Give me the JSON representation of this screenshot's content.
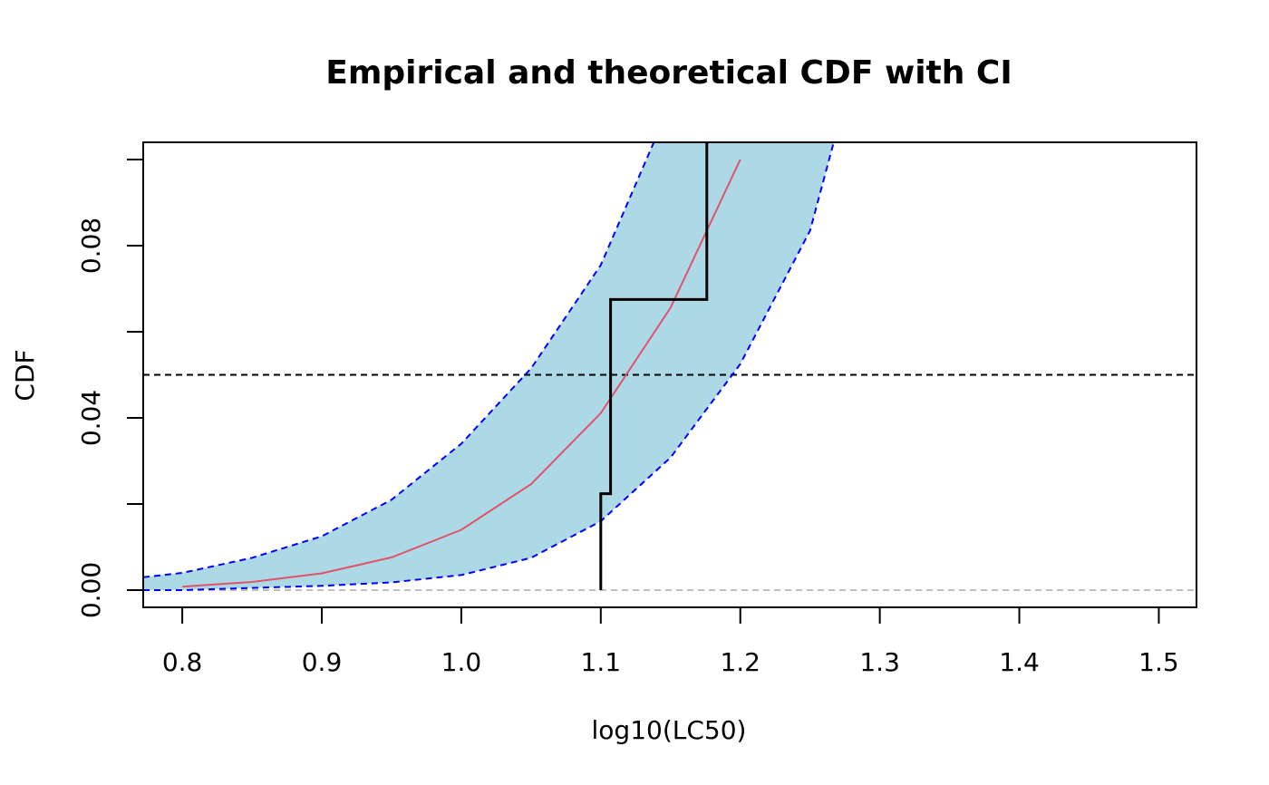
{
  "chart_data": {
    "type": "line",
    "title": "Empirical and theoretical CDF with CI",
    "xlabel": "log10(LC50)",
    "ylabel": "CDF",
    "xlim": [
      0.772,
      1.527
    ],
    "ylim": [
      -0.004,
      0.104
    ],
    "x_ticks": [
      0.8,
      0.9,
      1.0,
      1.1,
      1.2,
      1.3,
      1.4,
      1.5
    ],
    "x_tick_labels": [
      "0.8",
      "0.9",
      "1.0",
      "1.1",
      "1.2",
      "1.3",
      "1.4",
      "1.5"
    ],
    "y_ticks": [
      0.0,
      0.02,
      0.04,
      0.06,
      0.08,
      0.1
    ],
    "y_tick_labels": [
      "0.00",
      "",
      "0.04",
      "",
      "0.08",
      ""
    ],
    "reference_lines": [
      {
        "y": 0.05,
        "color": "#000000",
        "style": "dashed"
      },
      {
        "y": 0.0,
        "color": "#bebebe",
        "style": "dashed"
      }
    ],
    "ci_band": {
      "fill": "#add8e6",
      "line_color": "#0000ff",
      "style": "dashed",
      "upper": {
        "x": [
          0.772,
          0.8,
          0.85,
          0.9,
          0.95,
          1.0,
          1.05,
          1.1,
          1.138
        ],
        "y": [
          0.003,
          0.004,
          0.0075,
          0.0125,
          0.021,
          0.034,
          0.0515,
          0.0755,
          0.104
        ]
      },
      "lower": {
        "x": [
          0.772,
          0.8,
          0.85,
          0.9,
          0.95,
          1.0,
          1.05,
          1.1,
          1.15,
          1.2,
          1.25,
          1.267
        ],
        "y": [
          0.0,
          0.0,
          0.0005,
          0.001,
          0.0018,
          0.0035,
          0.0075,
          0.016,
          0.0308,
          0.0525,
          0.0835,
          0.104
        ]
      }
    },
    "series": [
      {
        "color": "#df536b",
        "x": [
          0.8,
          0.85,
          0.9,
          0.95,
          1.0,
          1.05,
          1.1,
          1.15,
          1.2
        ],
        "y": [
          0.0008,
          0.0019,
          0.0039,
          0.0076,
          0.014,
          0.0246,
          0.0411,
          0.0656,
          0.1
        ]
      },
      {
        "color": "#000000",
        "step": true,
        "x": [
          1.1,
          1.1,
          1.107,
          1.107,
          1.176,
          1.176
        ],
        "y": [
          0.0,
          0.0224,
          0.0224,
          0.0675,
          0.0675,
          0.104
        ]
      }
    ],
    "legend": "none",
    "grid": false
  }
}
